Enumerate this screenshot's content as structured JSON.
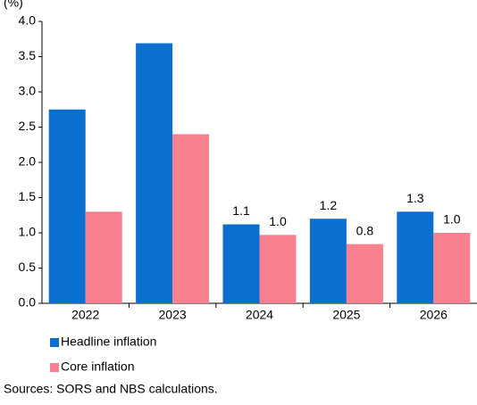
{
  "chart_data": {
    "type": "bar",
    "y_label": "(%)",
    "categories": [
      "2022",
      "2023",
      "2024",
      "2025",
      "2026"
    ],
    "series": [
      {
        "name": "Headline inflation",
        "color": "#0a6fcf",
        "values": [
          2.75,
          3.69,
          1.12,
          1.2,
          1.3
        ],
        "value_labels": [
          null,
          null,
          "1.1",
          "1.2",
          "1.3"
        ]
      },
      {
        "name": "Core inflation",
        "color": "#f8808f",
        "values": [
          1.3,
          2.4,
          0.97,
          0.84,
          1.0
        ],
        "value_labels": [
          null,
          null,
          "1.0",
          "0.8",
          "1.0"
        ]
      }
    ],
    "ylim": [
      0,
      4
    ],
    "yticks": [
      {
        "value": 0,
        "label": "0.0"
      },
      {
        "value": 0.5,
        "label": "0.5"
      },
      {
        "value": 1,
        "label": "1.0"
      },
      {
        "value": 1.5,
        "label": "1.5"
      },
      {
        "value": 2,
        "label": "2.0"
      },
      {
        "value": 2.5,
        "label": "2.5"
      },
      {
        "value": 3,
        "label": "3.0"
      },
      {
        "value": 3.5,
        "label": "3.5"
      },
      {
        "value": 4,
        "label": "4.0"
      }
    ],
    "grid": false,
    "legend": "bottom",
    "source": "Sources: SORS and NBS calculations."
  }
}
